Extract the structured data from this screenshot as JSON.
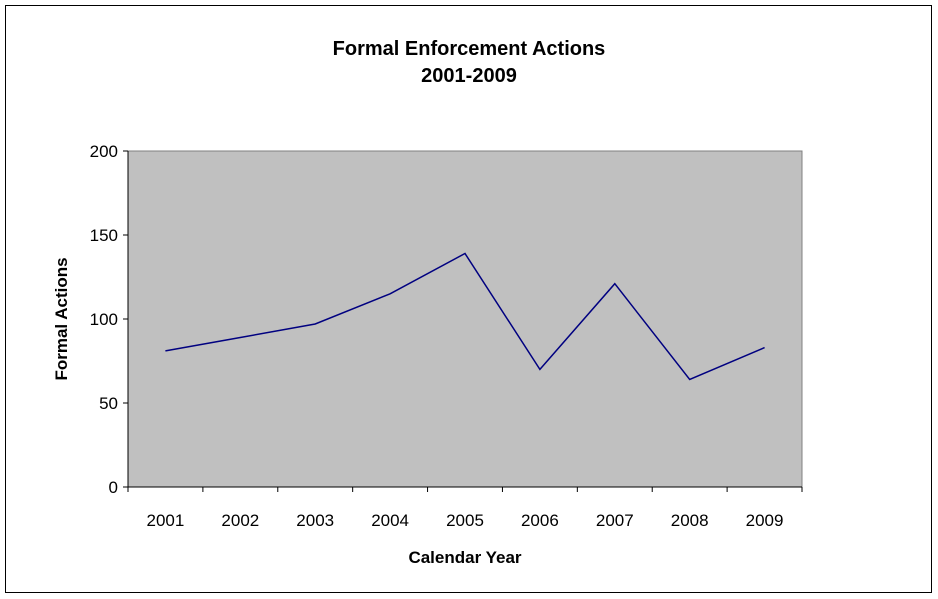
{
  "chart_data": {
    "type": "line",
    "title": "Formal Enforcement Actions",
    "subtitle": "2001-2009",
    "xlabel": "Calendar Year",
    "ylabel": "Formal Actions",
    "categories": [
      "2001",
      "2002",
      "2003",
      "2004",
      "2005",
      "2006",
      "2007",
      "2008",
      "2009"
    ],
    "series": [
      {
        "values": [
          81,
          89,
          97,
          115,
          139,
          70,
          121,
          64,
          83
        ]
      }
    ],
    "ylim": [
      0,
      200
    ],
    "yticks": [
      0,
      50,
      100,
      150,
      200
    ],
    "grid": false,
    "legend": "none",
    "colors": {
      "line": "#000080",
      "plot_background": "#c0c0c0",
      "plot_border": "#808080",
      "axis": "#000000"
    }
  }
}
